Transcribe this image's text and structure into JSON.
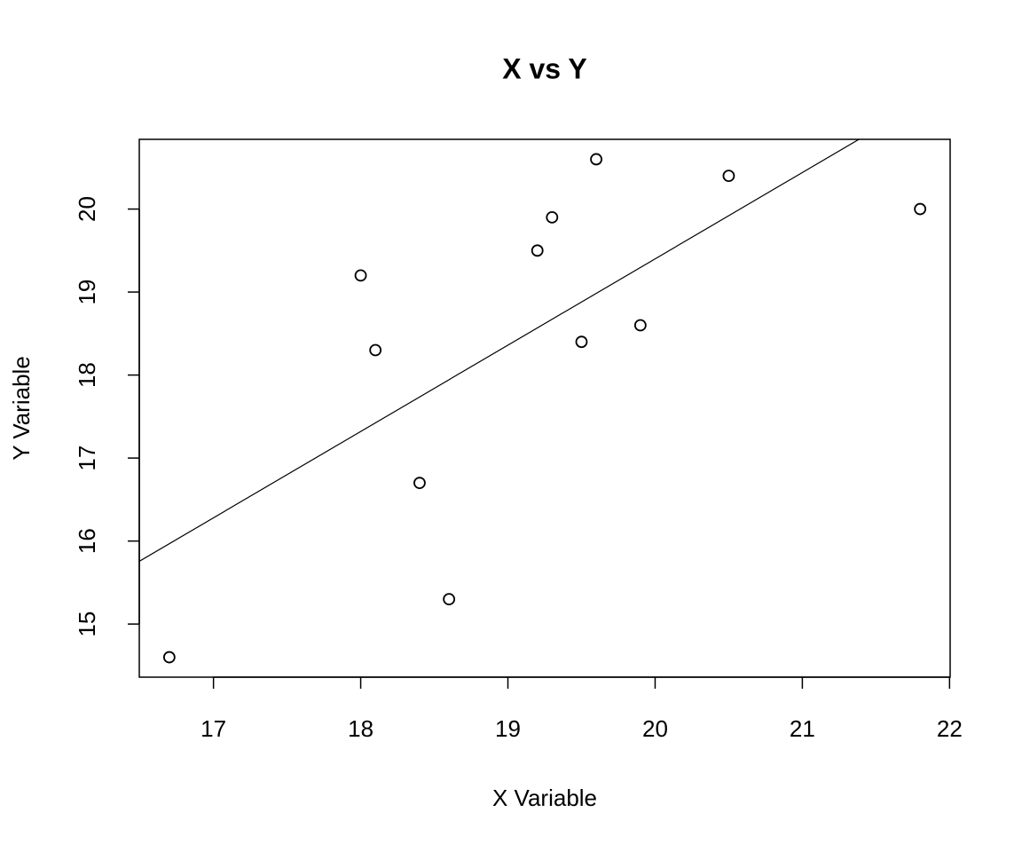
{
  "chart_data": {
    "type": "scatter",
    "title": "X vs Y",
    "x_label": "X Variable",
    "y_label": "Y Variable",
    "x": [
      16.7,
      18.0,
      18.1,
      18.4,
      18.6,
      19.2,
      19.3,
      19.5,
      19.6,
      19.9,
      20.5,
      21.8
    ],
    "values": [
      14.6,
      19.2,
      18.3,
      16.7,
      15.3,
      19.5,
      19.9,
      18.4,
      20.6,
      18.6,
      20.4,
      20.0
    ],
    "color": "#000000",
    "xlim": [
      16.496,
      22.004
    ],
    "ylim": [
      14.36,
      20.84
    ],
    "xticks": [
      17,
      18,
      19,
      20,
      21,
      22
    ],
    "yticks": [
      15,
      16,
      17,
      18,
      19,
      20
    ],
    "regression_line": {
      "intercept": -1.4,
      "slope": 1.04
    }
  }
}
